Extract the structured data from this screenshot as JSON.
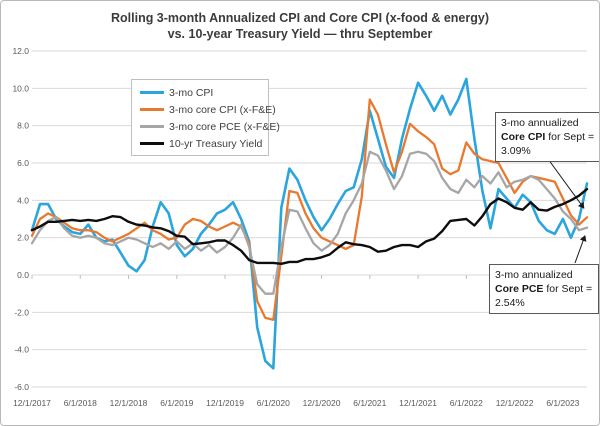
{
  "title": {
    "line1": "Rolling 3-month Annualized CPI and Core CPI (x-food & energy)",
    "line2": "vs. 10-year Treasury Yield — thru September"
  },
  "annotations": {
    "core_cpi": {
      "pre": "3-mo annualized ",
      "bold": "Core CPI",
      "post": " for Sept = 3.09%",
      "points_to_value": 3.09
    },
    "core_pce": {
      "pre": "3-mo annualized ",
      "bold": "Core PCE",
      "post": " for Sept = 2.54%",
      "points_to_value": 2.54
    }
  },
  "chart_data": {
    "type": "line",
    "title": "Rolling 3-month Annualized CPI and Core CPI (x-food & energy) vs. 10-year Treasury Yield — thru September",
    "n_points": 70,
    "x_start": "12/1/2017",
    "x_end": "9/1/2023",
    "x_tick_every": 6,
    "x_tick_labels": [
      "12/1/2017",
      "6/1/2018",
      "12/1/2018",
      "6/1/2019",
      "12/1/2019",
      "6/1/2020",
      "12/1/2020",
      "6/1/2021",
      "12/1/2021",
      "6/1/2022",
      "12/1/2022",
      "6/1/2023"
    ],
    "ylim": [
      -6,
      12
    ],
    "y_ticks": [
      {
        "value": 12,
        "label": "12.0"
      },
      {
        "value": 10,
        "label": "10.0"
      },
      {
        "value": 8,
        "label": "8.0"
      },
      {
        "value": 6,
        "label": "6.0"
      },
      {
        "value": 4,
        "label": "4.0"
      },
      {
        "value": 2,
        "label": "2.0"
      },
      {
        "value": 0,
        "label": "0.0"
      },
      {
        "value": -2,
        "label": "-2.0"
      },
      {
        "value": -4,
        "label": "-4.0"
      },
      {
        "value": -6,
        "label": "-6.0"
      }
    ],
    "grid": true,
    "grid_color": "#d9d9d9",
    "axis_text_color": "#595959",
    "legend_position": "upper-left-inside",
    "series": [
      {
        "name": "3-mo CPI",
        "color": "#2aa5dd",
        "width": 2.6,
        "values": [
          2.4,
          3.8,
          3.8,
          3.0,
          2.6,
          2.3,
          2.2,
          2.7,
          2.0,
          1.8,
          1.9,
          1.2,
          0.5,
          0.2,
          0.8,
          2.6,
          3.9,
          3.3,
          1.6,
          1.0,
          1.4,
          2.2,
          2.7,
          3.3,
          3.5,
          3.9,
          3.0,
          1.8,
          -2.8,
          -4.6,
          -5.0,
          3.6,
          5.7,
          5.1,
          4.0,
          3.1,
          2.4,
          3.0,
          3.8,
          4.5,
          4.7,
          6.2,
          8.8,
          7.3,
          5.8,
          5.2,
          7.3,
          8.9,
          10.3,
          9.6,
          8.8,
          9.6,
          8.6,
          9.4,
          10.5,
          7.3,
          4.5,
          2.5,
          4.6,
          4.1,
          3.6,
          4.3,
          3.9,
          2.9,
          2.4,
          2.2,
          3.0,
          2.0,
          3.0,
          4.9
        ]
      },
      {
        "name": "3-mo core CPI (x-F&E)",
        "color": "#e8792e",
        "width": 2.3,
        "values": [
          2.1,
          3.0,
          3.3,
          3.1,
          2.8,
          2.5,
          2.4,
          2.4,
          2.3,
          2.0,
          1.8,
          2.0,
          2.2,
          2.5,
          2.8,
          2.4,
          2.2,
          1.9,
          2.0,
          2.7,
          3.0,
          2.9,
          2.6,
          2.4,
          2.6,
          2.8,
          2.6,
          1.7,
          -1.4,
          -2.3,
          -2.4,
          1.0,
          4.5,
          4.4,
          3.3,
          2.5,
          2.0,
          1.8,
          1.6,
          1.4,
          1.6,
          4.2,
          9.4,
          8.6,
          7.0,
          5.5,
          6.6,
          8.1,
          7.7,
          7.4,
          7.0,
          5.7,
          5.4,
          5.6,
          7.1,
          6.5,
          6.2,
          6.1,
          6.0,
          5.2,
          4.4,
          5.0,
          5.3,
          5.2,
          5.1,
          5.0,
          4.1,
          3.2,
          2.7,
          3.09
        ]
      },
      {
        "name": "3-mo core PCE (x-F&E)",
        "color": "#a6a6a6",
        "width": 2.3,
        "values": [
          1.7,
          2.4,
          2.9,
          3.1,
          2.5,
          2.1,
          2.0,
          2.1,
          2.0,
          1.7,
          1.6,
          1.8,
          2.0,
          1.9,
          1.7,
          1.5,
          1.7,
          1.4,
          1.8,
          1.4,
          1.7,
          1.3,
          1.6,
          1.2,
          1.5,
          2.0,
          2.7,
          1.5,
          -0.5,
          -1.0,
          -1.0,
          1.5,
          3.5,
          3.4,
          2.5,
          1.7,
          1.3,
          1.6,
          2.2,
          3.3,
          4.0,
          4.9,
          6.6,
          6.4,
          5.6,
          4.6,
          5.3,
          6.5,
          6.6,
          6.5,
          6.1,
          5.2,
          4.6,
          4.4,
          5.1,
          4.7,
          5.3,
          4.9,
          5.5,
          4.7,
          5.0,
          5.1,
          5.3,
          5.1,
          4.6,
          4.1,
          3.4,
          3.0,
          2.4,
          2.54
        ]
      },
      {
        "name": "10-yr Treasury Yield",
        "color": "#0d0d0d",
        "width": 2.4,
        "values": [
          2.4,
          2.6,
          2.85,
          2.85,
          2.9,
          2.95,
          2.9,
          2.95,
          2.9,
          3.0,
          3.15,
          3.1,
          2.85,
          2.7,
          2.65,
          2.55,
          2.5,
          2.35,
          2.1,
          2.05,
          1.65,
          1.7,
          1.75,
          1.85,
          1.85,
          1.6,
          1.3,
          0.8,
          0.65,
          0.65,
          0.65,
          0.6,
          0.7,
          0.7,
          0.85,
          0.85,
          0.95,
          1.1,
          1.45,
          1.75,
          1.65,
          1.6,
          1.5,
          1.25,
          1.3,
          1.5,
          1.6,
          1.6,
          1.5,
          1.8,
          1.95,
          2.35,
          2.9,
          2.95,
          3.0,
          2.65,
          3.15,
          3.8,
          4.1,
          3.9,
          3.6,
          3.5,
          3.9,
          3.5,
          3.45,
          3.65,
          3.8,
          4.0,
          4.25,
          4.6
        ]
      }
    ]
  }
}
